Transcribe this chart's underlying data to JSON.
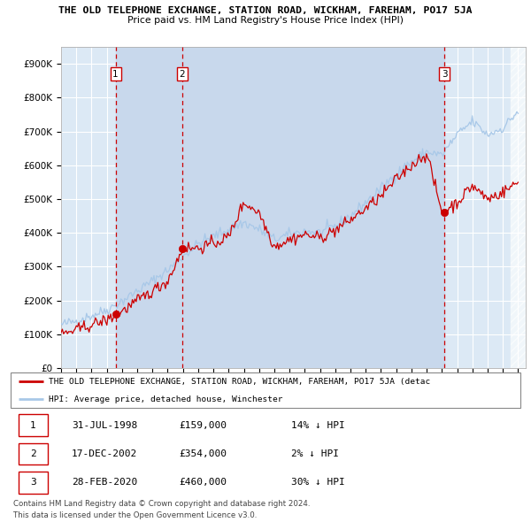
{
  "title": "THE OLD TELEPHONE EXCHANGE, STATION ROAD, WICKHAM, FAREHAM, PO17 5JA",
  "subtitle": "Price paid vs. HM Land Registry's House Price Index (HPI)",
  "ylim": [
    0,
    950000
  ],
  "yticks": [
    0,
    100000,
    200000,
    300000,
    400000,
    500000,
    600000,
    700000,
    800000,
    900000
  ],
  "ytick_labels": [
    "£0",
    "£100K",
    "£200K",
    "£300K",
    "£400K",
    "£500K",
    "£600K",
    "£700K",
    "£800K",
    "£900K"
  ],
  "plot_bg_color": "#dce9f5",
  "grid_color": "#ffffff",
  "hpi_color": "#a8c8e8",
  "price_color": "#cc0000",
  "sale_dashed_color": "#cc0000",
  "sale_shade_color": "#c8d8ec",
  "transactions": [
    {
      "label": "1",
      "date_x": 1998.58,
      "price": 159000
    },
    {
      "label": "2",
      "date_x": 2002.96,
      "price": 354000
    },
    {
      "label": "3",
      "date_x": 2020.16,
      "price": 460000
    }
  ],
  "legend_property_label": "THE OLD TELEPHONE EXCHANGE, STATION ROAD, WICKHAM, FAREHAM, PO17 5JA (detac",
  "legend_hpi_label": "HPI: Average price, detached house, Winchester",
  "footer_line1": "Contains HM Land Registry data © Crown copyright and database right 2024.",
  "footer_line2": "This data is licensed under the Open Government Licence v3.0.",
  "table_rows": [
    [
      "1",
      "31-JUL-1998",
      "£159,000",
      "14% ↓ HPI"
    ],
    [
      "2",
      "17-DEC-2002",
      "£354,000",
      "2% ↓ HPI"
    ],
    [
      "3",
      "28-FEB-2020",
      "£460,000",
      "30% ↓ HPI"
    ]
  ],
  "hatch_region_start": 2024.5,
  "xlim_start": 1995.0,
  "xlim_end": 2025.5
}
